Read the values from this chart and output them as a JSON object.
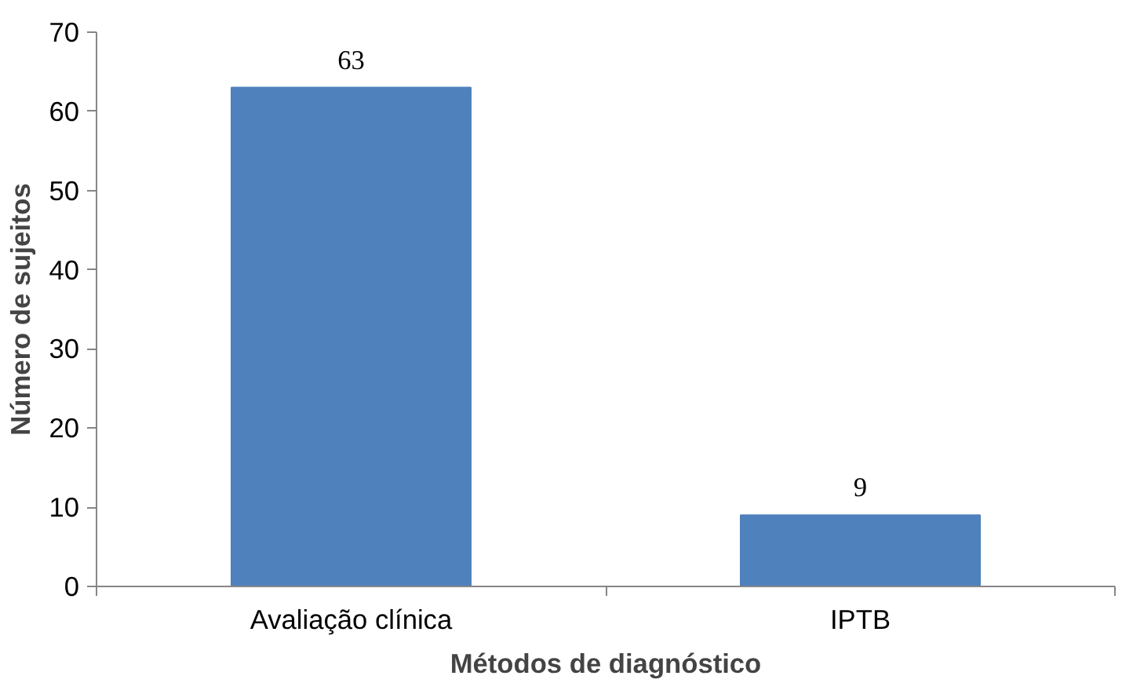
{
  "chart_data": {
    "type": "bar",
    "xlabel": "Métodos de diagnóstico",
    "ylabel": "Número de sujeitos",
    "categories": [
      "Avaliação clínica",
      "IPTB"
    ],
    "values": [
      63,
      9
    ],
    "color": "#4f81bd",
    "ylim": [
      0,
      70
    ],
    "yticks": [
      0,
      10,
      20,
      30,
      40,
      50,
      60,
      70
    ],
    "data_labels": true
  }
}
